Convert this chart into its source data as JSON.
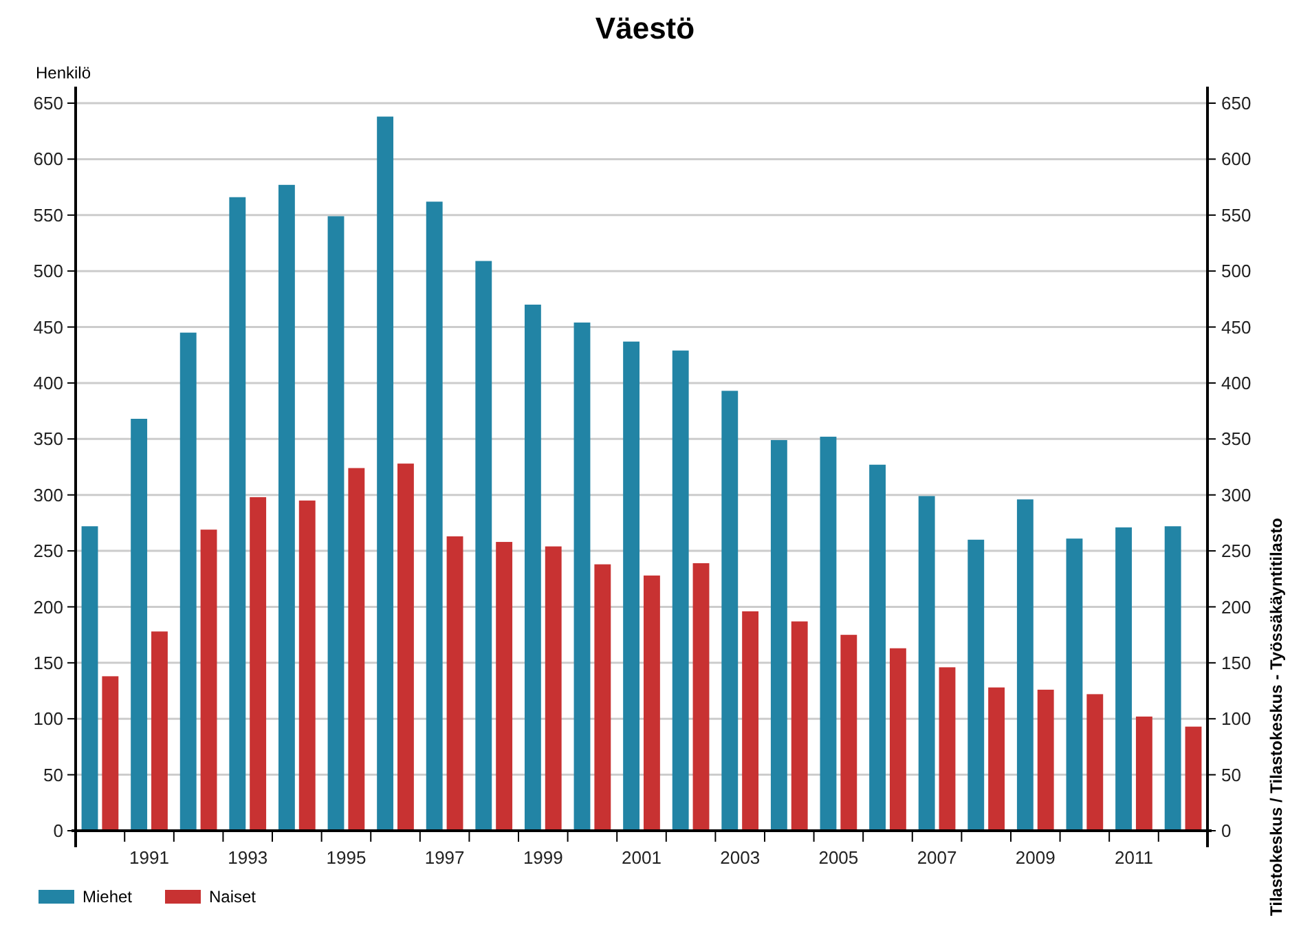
{
  "chart_data": {
    "type": "bar",
    "title": "Väestö",
    "ylabel": "Henkilö",
    "annotations": [
      "Tilastokeskus / Tilastokeskus - Työssäkäyntitilasto"
    ],
    "categories": [
      null,
      "1991",
      null,
      "1993",
      null,
      "1995",
      null,
      "1997",
      null,
      "1999",
      null,
      "2001",
      null,
      "2003",
      null,
      "2005",
      null,
      "2007",
      null,
      "2009",
      null,
      "2011",
      null
    ],
    "series": [
      {
        "name": "Miehet",
        "color": "#2284a5",
        "values": [
          272,
          368,
          445,
          566,
          577,
          549,
          638,
          562,
          509,
          470,
          454,
          437,
          429,
          393,
          349,
          352,
          327,
          299,
          260,
          296,
          261,
          271,
          272
        ]
      },
      {
        "name": "Naiset",
        "color": "#c83232",
        "values": [
          138,
          178,
          269,
          298,
          295,
          324,
          328,
          263,
          258,
          254,
          238,
          228,
          239,
          196,
          187,
          175,
          163,
          146,
          128,
          126,
          122,
          102,
          93
        ]
      }
    ],
    "ylim": [
      0,
      650
    ],
    "yticks": [
      0,
      50,
      100,
      150,
      200,
      250,
      300,
      350,
      400,
      450,
      500,
      550,
      600,
      650
    ],
    "y2lim": [
      0,
      650
    ],
    "y2ticks": [
      0,
      50,
      100,
      150,
      200,
      250,
      300,
      350,
      400,
      450,
      500,
      550,
      600,
      650
    ],
    "grid": "y",
    "legend": "bottom left"
  }
}
